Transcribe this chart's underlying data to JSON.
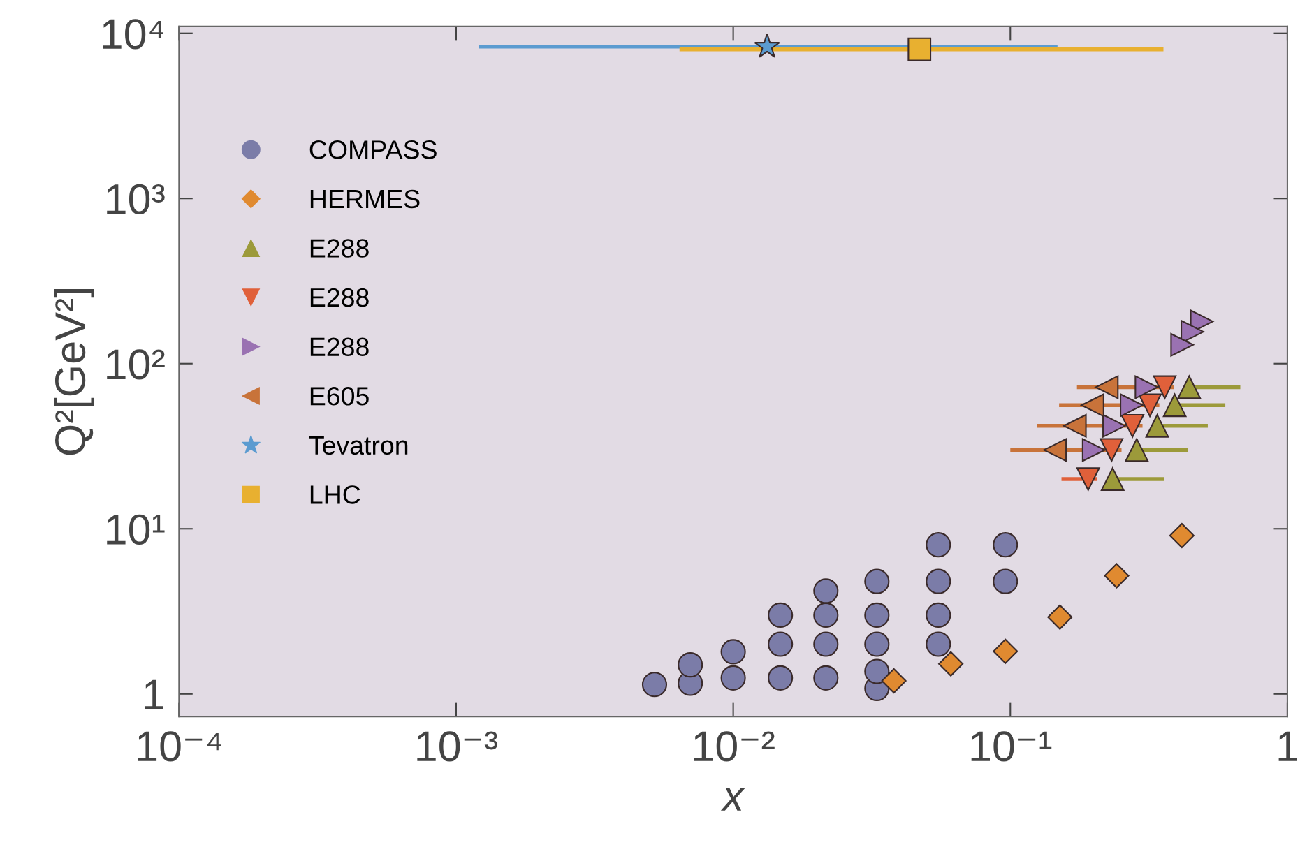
{
  "chart_data": {
    "type": "scatter",
    "xlabel": "x",
    "ylabel": "Q²[GeV²]",
    "log": "xy",
    "grid": false,
    "legend": "top left",
    "xlim": [
      0.0001,
      1
    ],
    "ylim": [
      0.73,
      11000
    ],
    "xticks": [
      {
        "value": 0.0001,
        "label": "10⁻⁴"
      },
      {
        "value": 0.001,
        "label": "10⁻³"
      },
      {
        "value": 0.01,
        "label": "10⁻²"
      },
      {
        "value": 0.1,
        "label": "10⁻¹"
      },
      1
    ],
    "yticks": [
      1,
      {
        "value": 10,
        "label": "10¹"
      },
      {
        "value": 100,
        "label": "10²"
      },
      {
        "value": 1000,
        "label": "10³"
      },
      {
        "value": 10000,
        "label": "10⁴"
      }
    ],
    "series": [
      {
        "name": "COMPASS",
        "color": "#7b7ca8",
        "marker": "circle",
        "x": [
          0.0052,
          0.007,
          0.007,
          0.01,
          0.01,
          0.0148,
          0.0148,
          0.0148,
          0.0216,
          0.0216,
          0.0216,
          0.0216,
          0.033,
          0.033,
          0.033,
          0.033,
          0.033,
          0.055,
          0.055,
          0.055,
          0.055,
          0.096,
          0.096
        ],
        "values": [
          1.14,
          1.16,
          1.5,
          1.25,
          1.8,
          1.25,
          2.0,
          3.0,
          1.25,
          2.0,
          3.0,
          4.2,
          1.08,
          1.37,
          2.0,
          3.0,
          4.8,
          2.0,
          3.0,
          4.8,
          8.0,
          4.8,
          8.0
        ]
      },
      {
        "name": "HERMES",
        "color": "#e08a30",
        "marker": "diamond",
        "x": [
          0.038,
          0.061,
          0.096,
          0.151,
          0.242,
          0.416
        ],
        "values": [
          1.2,
          1.52,
          1.81,
          2.92,
          5.2,
          9.1
        ]
      },
      {
        "name": "E288",
        "color": "#9c9a3a",
        "marker": "triangle",
        "x": [
          0.442,
          0.392,
          0.339,
          0.286,
          0.234
        ],
        "values": [
          72,
          56,
          42,
          30,
          20
        ],
        "xerrors": [
          [
            0.442,
            0.676
          ],
          [
            0.392,
            0.597
          ],
          [
            0.339,
            0.516
          ],
          [
            0.286,
            0.437
          ],
          [
            0.234,
            0.359
          ]
        ]
      },
      {
        "name": "E288",
        "color": "#e0603a",
        "marker": "triangle_down",
        "x": [
          0.361,
          0.319,
          0.276,
          0.232,
          0.191
        ],
        "values": [
          72,
          56,
          42,
          30,
          20
        ],
        "xerrors": [
          null,
          null,
          null,
          null,
          [
            0.153,
            0.206
          ]
        ]
      },
      {
        "name": "E288",
        "color": "#9a72b2",
        "marker": "triangle_right",
        "x": [
          0.31,
          0.274,
          0.237,
          0.2,
          0.491,
          0.454,
          0.417
        ],
        "values": [
          72,
          56,
          42,
          30,
          180,
          156,
          130
        ]
      },
      {
        "name": "E605",
        "color": "#c8733a",
        "marker": "triangle_left",
        "x": [
          0.223,
          0.198,
          0.171,
          0.145
        ],
        "values": [
          72,
          56,
          42,
          30
        ],
        "xerrors": [
          [
            0.174,
            0.39
          ],
          [
            0.15,
            0.345
          ],
          [
            0.125,
            0.3
          ],
          [
            0.1,
            0.252
          ]
        ]
      },
      {
        "name": "Tevatron",
        "color": "#5b9bd0",
        "marker": "star",
        "x": [
          0.01325
        ],
        "values": [
          8300
        ],
        "xerrors": [
          [
            0.00121,
            0.148
          ]
        ]
      },
      {
        "name": "LHC",
        "color": "#e8b030",
        "marker": "square",
        "x": [
          0.047
        ],
        "values": [
          8000
        ],
        "xerrors": [
          [
            0.0064,
            0.357
          ]
        ]
      }
    ]
  }
}
